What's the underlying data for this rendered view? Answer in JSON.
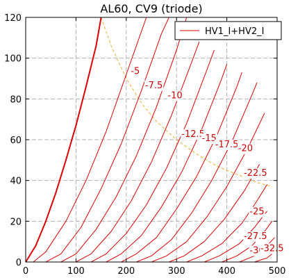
{
  "chart_data": {
    "type": "line",
    "title": "AL60, CV9 (triode)",
    "xlabel": "",
    "ylabel": "",
    "xlim": [
      0,
      500
    ],
    "ylim": [
      0,
      120
    ],
    "xticks": [
      0,
      100,
      200,
      300,
      400,
      500
    ],
    "yticks": [
      0,
      20,
      40,
      60,
      80,
      100,
      120
    ],
    "grid": true,
    "legend": {
      "placement": "top-right",
      "entries": [
        "HV1_I+HV2_I"
      ]
    },
    "colors": {
      "curves": "#dd0000",
      "dissipation": "#f0b030",
      "grid": "#b0b0b0"
    },
    "series": [
      {
        "label": "",
        "x": [
          0,
          20,
          40,
          60,
          80,
          100,
          120,
          140,
          150
        ],
        "y": [
          0,
          8,
          20,
          34,
          50,
          67,
          86,
          106,
          120
        ]
      },
      {
        "label": "-5",
        "x": [
          15,
          40,
          80,
          120,
          160,
          200,
          240
        ],
        "y": [
          0,
          5,
          20,
          40,
          64,
          92,
          120
        ]
      },
      {
        "label": "-7.5",
        "x": [
          40,
          70,
          110,
          150,
          190,
          230,
          270,
          285
        ],
        "y": [
          0,
          4,
          17,
          36,
          58,
          84,
          112,
          120
        ]
      },
      {
        "label": "-10",
        "x": [
          70,
          100,
          140,
          180,
          220,
          260,
          300,
          320
        ],
        "y": [
          0,
          4,
          16,
          32,
          52,
          76,
          104,
          120
        ]
      },
      {
        "label": "-12.5",
        "x": [
          100,
          130,
          170,
          210,
          250,
          290,
          330,
          345
        ],
        "y": [
          0,
          4,
          15,
          30,
          49,
          72,
          98,
          108
        ]
      },
      {
        "label": "-15",
        "x": [
          130,
          160,
          200,
          240,
          280,
          320,
          360,
          375
        ],
        "y": [
          0,
          4,
          14,
          28,
          46,
          68,
          94,
          104
        ]
      },
      {
        "label": "-17.5",
        "x": [
          160,
          190,
          230,
          270,
          310,
          350,
          390,
          400
        ],
        "y": [
          0,
          4,
          13,
          27,
          44,
          65,
          90,
          97
        ]
      },
      {
        "label": "-20",
        "x": [
          190,
          220,
          260,
          300,
          340,
          380,
          420,
          430
        ],
        "y": [
          0,
          4,
          12,
          26,
          42,
          62,
          86,
          93
        ]
      },
      {
        "label": "-22.5",
        "x": [
          220,
          250,
          290,
          330,
          370,
          410,
          450,
          460
        ],
        "y": [
          0,
          3,
          11,
          24,
          40,
          59,
          82,
          88
        ]
      },
      {
        "label": "-25",
        "x": [
          250,
          280,
          320,
          360,
          400,
          440,
          475
        ],
        "y": [
          0,
          3,
          10,
          22,
          37,
          55,
          73
        ]
      },
      {
        "label": "-27.5",
        "x": [
          285,
          315,
          355,
          395,
          435,
          465
        ],
        "y": [
          0,
          3,
          10,
          21,
          35,
          48
        ]
      },
      {
        "label": "-30",
        "x": [
          320,
          350,
          390,
          430,
          460,
          480
        ],
        "y": [
          0,
          3,
          9,
          19,
          30,
          38
        ]
      },
      {
        "label": "-32.5",
        "x": [
          355,
          385,
          425,
          455,
          480
        ],
        "y": [
          0,
          3,
          9,
          17,
          25
        ]
      },
      {
        "label": "",
        "x": [
          390,
          420,
          450,
          475,
          490
        ],
        "y": [
          0,
          3,
          8,
          15,
          20
        ]
      },
      {
        "label": "",
        "x": [
          425,
          455,
          480,
          495
        ],
        "y": [
          0,
          3,
          8,
          12
        ]
      },
      {
        "label": "",
        "x": [
          455,
          480,
          495
        ],
        "y": [
          0,
          2,
          5
        ]
      }
    ],
    "dissipation_curve": {
      "x": [
        150,
        170,
        200,
        230,
        260,
        300,
        340,
        380,
        420,
        460,
        490
      ],
      "y": [
        120,
        106,
        90,
        78,
        69,
        60,
        53,
        47,
        43,
        39,
        37
      ]
    },
    "annotations": [
      {
        "text": "-5",
        "x": 218,
        "y": 94
      },
      {
        "text": "-7.5",
        "x": 255,
        "y": 87
      },
      {
        "text": "-10",
        "x": 297,
        "y": 82
      },
      {
        "text": "-12.5",
        "x": 333,
        "y": 63
      },
      {
        "text": "-15",
        "x": 365,
        "y": 61
      },
      {
        "text": "-17.5",
        "x": 400,
        "y": 58
      },
      {
        "text": "-20",
        "x": 437,
        "y": 56
      },
      {
        "text": "-22.5",
        "x": 457,
        "y": 44
      },
      {
        "text": "-25",
        "x": 460,
        "y": 25
      },
      {
        "text": "-27.5",
        "x": 457,
        "y": 13
      },
      {
        "text": "-30",
        "x": 460,
        "y": 6
      },
      {
        "text": "-32.5",
        "x": 490,
        "y": 7
      }
    ]
  }
}
